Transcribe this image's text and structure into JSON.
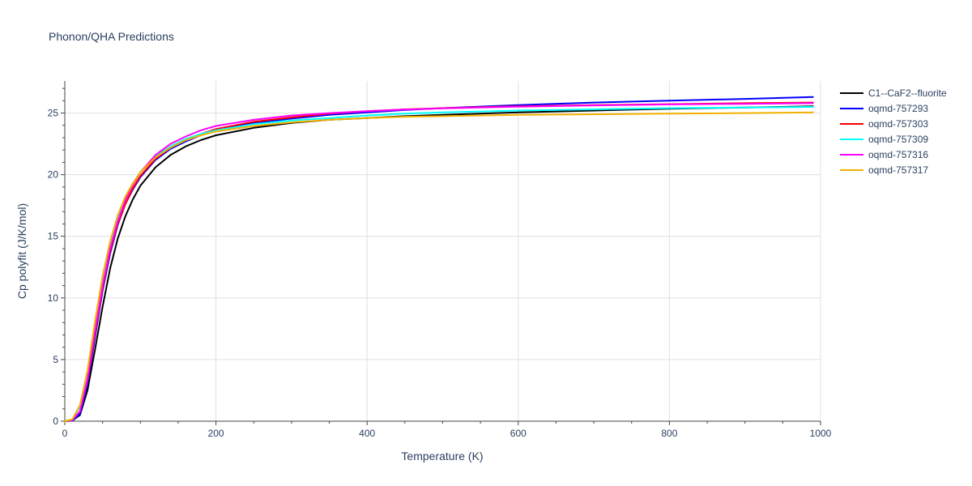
{
  "chart_data": {
    "type": "line",
    "title": "Phonon/QHA Predictions",
    "xlabel": "Temperature (K)",
    "ylabel": "Cp polyfit (J/K/mol)",
    "xlim": [
      0,
      1000
    ],
    "ylim": [
      0,
      27.6
    ],
    "xticks": [
      0,
      200,
      400,
      600,
      800,
      1000
    ],
    "yticks": [
      0,
      5,
      10,
      15,
      20,
      25
    ],
    "grid": true,
    "legend_position": "top-right",
    "x": [
      0,
      10,
      20,
      30,
      40,
      50,
      60,
      70,
      80,
      90,
      100,
      120,
      140,
      160,
      180,
      200,
      250,
      300,
      350,
      400,
      450,
      500,
      600,
      700,
      800,
      900,
      990
    ],
    "series": [
      {
        "name": "C1--CaF2--fluorite",
        "color": "#000000",
        "values": [
          0,
          0.05,
          0.5,
          2.5,
          5.8,
          9.3,
          12.4,
          14.8,
          16.6,
          18.0,
          19.1,
          20.6,
          21.6,
          22.3,
          22.8,
          23.2,
          23.8,
          24.2,
          24.45,
          24.6,
          24.75,
          24.85,
          25.05,
          25.2,
          25.35,
          25.45,
          25.55
        ]
      },
      {
        "name": "oqmd-757293",
        "color": "#0000ff",
        "values": [
          0,
          0.05,
          0.6,
          3.0,
          6.8,
          10.6,
          13.6,
          15.9,
          17.6,
          18.8,
          19.8,
          21.2,
          22.1,
          22.7,
          23.2,
          23.6,
          24.2,
          24.55,
          24.85,
          25.05,
          25.25,
          25.4,
          25.65,
          25.85,
          26.0,
          26.15,
          26.3
        ]
      },
      {
        "name": "oqmd-757303",
        "color": "#ff0000",
        "values": [
          0,
          0.1,
          0.8,
          3.3,
          7.1,
          10.8,
          13.8,
          16.0,
          17.6,
          18.9,
          19.9,
          21.3,
          22.2,
          22.8,
          23.3,
          23.7,
          24.3,
          24.65,
          24.95,
          25.15,
          25.3,
          25.4,
          25.55,
          25.65,
          25.72,
          25.8,
          25.85
        ]
      },
      {
        "name": "oqmd-757309",
        "color": "#00ffff",
        "values": [
          0,
          0.15,
          1.2,
          4.0,
          8.0,
          11.7,
          14.5,
          16.6,
          18.1,
          19.3,
          20.2,
          21.5,
          22.3,
          22.9,
          23.3,
          23.6,
          24.1,
          24.4,
          24.6,
          24.8,
          24.95,
          25.05,
          25.2,
          25.3,
          25.4,
          25.45,
          25.5
        ]
      },
      {
        "name": "oqmd-757316",
        "color": "#ff00ff",
        "values": [
          0,
          0.1,
          0.8,
          3.4,
          7.3,
          11.0,
          14.0,
          16.2,
          17.9,
          19.2,
          20.2,
          21.6,
          22.5,
          23.1,
          23.6,
          23.95,
          24.45,
          24.8,
          25.0,
          25.15,
          25.28,
          25.38,
          25.52,
          25.62,
          25.7,
          25.75,
          25.8
        ]
      },
      {
        "name": "oqmd-757317",
        "color": "#f2b100",
        "values": [
          0,
          0.15,
          1.3,
          4.1,
          8.1,
          11.8,
          14.6,
          16.7,
          18.2,
          19.3,
          20.2,
          21.4,
          22.2,
          22.8,
          23.2,
          23.5,
          23.95,
          24.25,
          24.45,
          24.6,
          24.7,
          24.75,
          24.85,
          24.9,
          24.95,
          25.0,
          25.05
        ]
      }
    ]
  }
}
